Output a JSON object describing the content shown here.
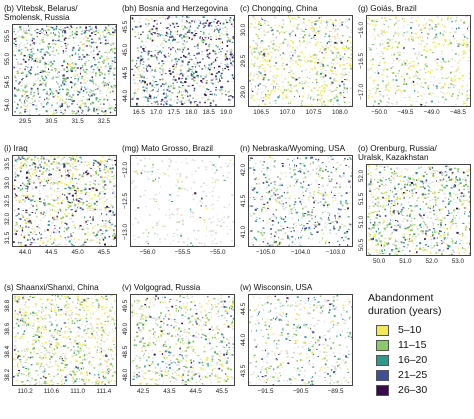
{
  "panels": [
    {
      "title": "(b) Vitebsk, Belarus/\nSmolensk, Russia",
      "xticks": [
        "29.5",
        "30.5",
        "31.5",
        "32.5"
      ],
      "yticks": [
        "55.5",
        "55.0",
        "54.5",
        "54.0"
      ],
      "density": 0.85,
      "weights": [
        0.1,
        0.35,
        0.25,
        0.2,
        0.1
      ]
    },
    {
      "title": "(bh) Bosnia and Herzegovina",
      "xticks": [
        "16.5",
        "17.0",
        "17.5",
        "18.0",
        "18.5",
        "19.0"
      ],
      "yticks": [
        "45.5",
        "45.0",
        "44.5",
        "44.0"
      ],
      "density": 0.75,
      "weights": [
        0.05,
        0.2,
        0.2,
        0.3,
        0.25
      ]
    },
    {
      "title": "(c) Chongqing, China",
      "xticks": [
        "106.5",
        "107.0",
        "107.5",
        "108.0"
      ],
      "yticks": [
        "30.0",
        "29.5",
        "29.0"
      ],
      "density": 0.6,
      "weights": [
        0.55,
        0.25,
        0.1,
        0.05,
        0.05
      ]
    },
    {
      "title": "(g) Goiás, Brazil",
      "xticks": [
        "−50.0",
        "−49.5",
        "−49.0",
        "−48.5"
      ],
      "yticks": [
        "−16.0",
        "−16.5",
        "−17.0"
      ],
      "density": 0.4,
      "weights": [
        0.5,
        0.35,
        0.1,
        0.04,
        0.01
      ]
    },
    {
      "title": "(i) Iraq",
      "xticks": [
        "44.0",
        "44.5",
        "45.0",
        "45.5"
      ],
      "yticks": [
        "33.5",
        "33.0",
        "32.5",
        "32.0",
        "31.5"
      ],
      "density": 0.8,
      "weights": [
        0.35,
        0.2,
        0.15,
        0.15,
        0.15
      ]
    },
    {
      "title": "(mg) Mato Grosso, Brazil",
      "xticks": [
        "−56.0",
        "−55.5",
        "−55.0"
      ],
      "yticks": [
        "−12.0",
        "−12.5",
        "−13.0"
      ],
      "density": 0.05,
      "weights": [
        0.3,
        0.3,
        0.2,
        0.1,
        0.1
      ]
    },
    {
      "title": "(n) Nebraska/Wyoming, USA",
      "xticks": [
        "−105.0",
        "−104.0",
        "−103.0"
      ],
      "yticks": [
        "42.0",
        "41.5",
        "41.0"
      ],
      "density": 0.45,
      "weights": [
        0.1,
        0.3,
        0.25,
        0.25,
        0.1
      ]
    },
    {
      "title": "(o) Orenburg, Russia/\nUralsk, Kazakhstan",
      "xticks": [
        "50.0",
        "51.0",
        "52.0",
        "53.0"
      ],
      "yticks": [
        "52.0",
        "51.5",
        "51.0",
        "50.5"
      ],
      "density": 0.7,
      "weights": [
        0.25,
        0.35,
        0.2,
        0.15,
        0.05
      ]
    },
    {
      "title": "(s) Shaanxi/Shanxi, China",
      "xticks": [
        "110.2",
        "110.6",
        "111.0",
        "111.4"
      ],
      "yticks": [
        "38.8",
        "38.6",
        "38.4",
        "38.2"
      ],
      "density": 0.7,
      "weights": [
        0.45,
        0.35,
        0.12,
        0.06,
        0.02
      ]
    },
    {
      "title": "(v) Volgograd, Russia",
      "xticks": [
        "42.5",
        "43.5",
        "44.5",
        "45.5"
      ],
      "yticks": [
        "49.5",
        "49.0",
        "48.5",
        "48.0"
      ],
      "density": 0.55,
      "weights": [
        0.3,
        0.35,
        0.2,
        0.1,
        0.05
      ]
    },
    {
      "title": "(w) Wisconsin, USA",
      "xticks": [
        "−91.5",
        "−90.5",
        "−89.5"
      ],
      "yticks": [
        "44.5",
        "44.0",
        "43.5"
      ],
      "density": 0.3,
      "weights": [
        0.2,
        0.35,
        0.25,
        0.15,
        0.05
      ]
    }
  ],
  "legend": {
    "title": "Abandonment\nduration (years)",
    "classes": [
      {
        "label": "5–10",
        "color": "#f2ea55"
      },
      {
        "label": "11–15",
        "color": "#8cc96a"
      },
      {
        "label": "16–20",
        "color": "#2f9a8a"
      },
      {
        "label": "21–25",
        "color": "#3f4e95"
      },
      {
        "label": "26–30",
        "color": "#3a0a4a"
      }
    ]
  },
  "background_color": "#b9b9b9"
}
